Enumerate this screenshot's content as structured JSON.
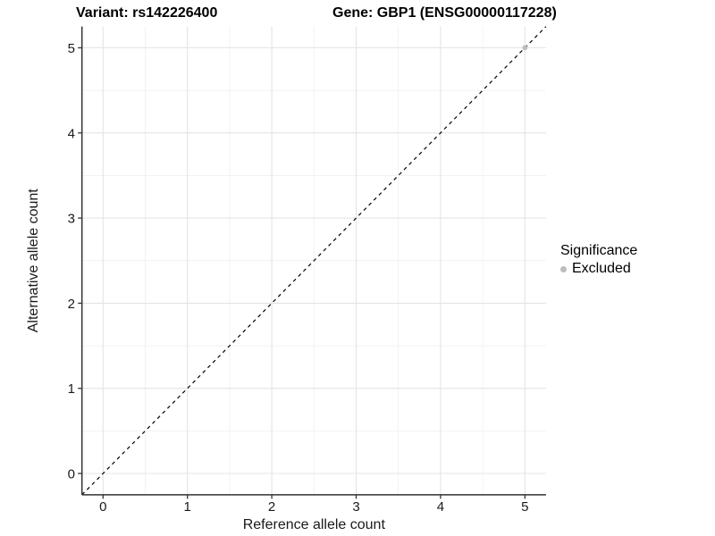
{
  "chart_data": {
    "type": "scatter",
    "title_left": "Variant: rs142226400",
    "title_right": "Gene: GBP1 (ENSG00000117228)",
    "xlabel": "Reference allele count",
    "ylabel": "Alternative allele count",
    "xlim": [
      -0.25,
      5.25
    ],
    "ylim": [
      -0.25,
      5.25
    ],
    "x_ticks": [
      0,
      1,
      2,
      3,
      4,
      5
    ],
    "y_ticks": [
      0,
      1,
      2,
      3,
      4,
      5
    ],
    "grid": true,
    "points": [
      {
        "x": 5,
        "y": 5,
        "series": "Excluded"
      }
    ],
    "reference_line": {
      "slope": 1,
      "intercept": 0,
      "style": "dashed",
      "color": "#000000"
    },
    "legend": {
      "title": "Significance",
      "position": "right",
      "items": [
        {
          "label": "Excluded",
          "color": "#bdbdbd"
        }
      ]
    },
    "colors": {
      "axis_line": "#333333",
      "tick_text": "#1a1a1a",
      "major_grid": "#e4e4e4",
      "minor_grid": "#f1f1f1",
      "background": "#ffffff"
    }
  }
}
